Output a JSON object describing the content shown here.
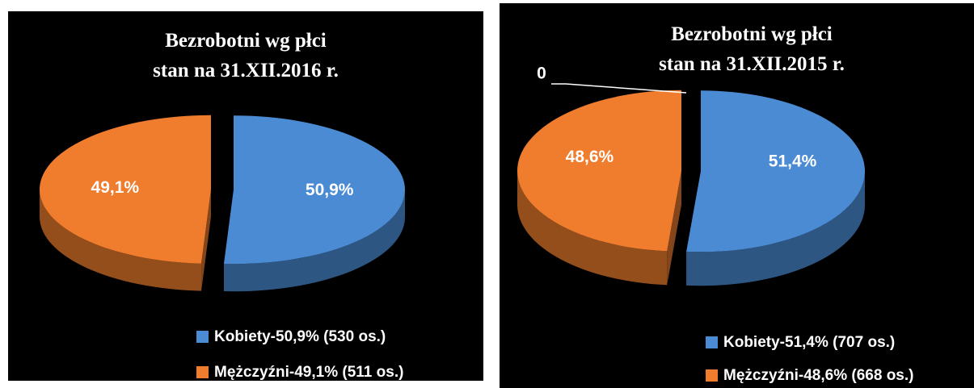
{
  "chart_data": [
    {
      "type": "pie",
      "title": [
        "Bezrobotni wg płci",
        "stan na 31.XII.2016 r."
      ],
      "categories": [
        "Kobiety-50,9% (530 os.)",
        "Mężczyźni-49,1% (511 os.)"
      ],
      "values": [
        50.9,
        49.1
      ],
      "value_labels": [
        "50,9%",
        "49,1%"
      ],
      "colors": [
        "#4a8bd3",
        "#ef7d2d"
      ]
    },
    {
      "type": "pie",
      "title": [
        "Bezrobotni wg płci",
        "stan na 31.XII.2015 r."
      ],
      "categories": [
        "Kobiety-51,4% (707 os.)",
        "Mężczyźni-48,6% (668 os.)"
      ],
      "values": [
        51.4,
        48.6
      ],
      "value_labels": [
        "51,4%",
        "48,6%"
      ],
      "colors": [
        "#4a8bd3",
        "#ef7d2d"
      ],
      "annotation": "0"
    }
  ]
}
